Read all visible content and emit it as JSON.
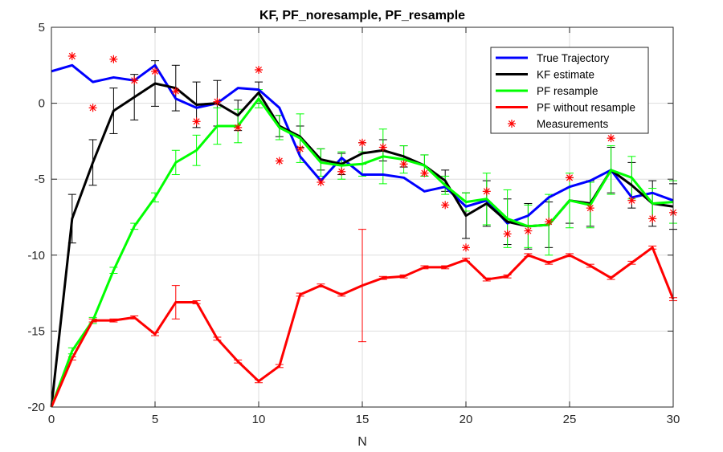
{
  "chart_data": {
    "type": "line",
    "title": "KF, PF_noresample, PF_resample",
    "xlabel": "N",
    "ylabel": "",
    "xlim": [
      0,
      30
    ],
    "ylim": [
      -20,
      5
    ],
    "xticks": [
      0,
      5,
      10,
      15,
      20,
      25,
      30
    ],
    "yticks": [
      -20,
      -15,
      -10,
      -5,
      0,
      5
    ],
    "grid": true,
    "legend_position": "top-right",
    "x": [
      0,
      1,
      2,
      3,
      4,
      5,
      6,
      7,
      8,
      9,
      10,
      11,
      12,
      13,
      14,
      15,
      16,
      17,
      18,
      19,
      20,
      21,
      22,
      23,
      24,
      25,
      26,
      27,
      28,
      29,
      30
    ],
    "series": [
      {
        "name": "True Trajectory",
        "style": "line",
        "color": "#0000ff",
        "values": [
          2.1,
          2.5,
          1.4,
          1.7,
          1.5,
          2.5,
          0.3,
          -0.3,
          0.0,
          1.0,
          0.9,
          -0.3,
          -3.5,
          -5.1,
          -3.6,
          -4.7,
          -4.7,
          -4.9,
          -5.8,
          -5.5,
          -6.8,
          -6.4,
          -7.9,
          -7.4,
          -6.2,
          -5.5,
          -5.1,
          -4.4,
          -6.2,
          -5.9,
          -6.4
        ]
      },
      {
        "name": "KF estimate",
        "style": "line",
        "color": "#000000",
        "values": [
          -20.0,
          -7.6,
          -3.9,
          -0.5,
          0.4,
          1.3,
          1.0,
          -0.1,
          0.0,
          -0.8,
          0.7,
          -1.5,
          -2.2,
          -3.7,
          -4.0,
          -3.3,
          -3.1,
          -3.5,
          -4.1,
          -5.1,
          -7.4,
          -6.6,
          -7.8,
          -8.1,
          -8.0,
          -6.4,
          -6.6,
          -4.4,
          -5.4,
          -6.6,
          -6.8
        ],
        "error": [
          0,
          1.6,
          1.5,
          1.5,
          1.5,
          1.5,
          1.5,
          1.5,
          1.5,
          1.0,
          0.7,
          0.7,
          0.7,
          0.7,
          0.7,
          0.7,
          0.7,
          0.7,
          0.7,
          0.7,
          1.5,
          1.5,
          1.5,
          1.5,
          1.5,
          1.5,
          1.5,
          1.5,
          1.5,
          1.5,
          1.5
        ]
      },
      {
        "name": "PF resample",
        "style": "line",
        "color": "#00ff00",
        "values": [
          -20.0,
          -16.3,
          -14.3,
          -11.0,
          -8.1,
          -6.2,
          -3.9,
          -3.1,
          -1.5,
          -1.5,
          0.3,
          -1.6,
          -2.3,
          -3.9,
          -4.1,
          -4.0,
          -3.5,
          -3.7,
          -4.1,
          -5.4,
          -6.5,
          -6.3,
          -7.6,
          -8.1,
          -8.0,
          -6.4,
          -6.7,
          -4.4,
          -4.9,
          -6.6,
          -6.5
        ],
        "error": [
          0,
          0.2,
          0.2,
          0.2,
          0.2,
          0.3,
          0.8,
          1.0,
          1.2,
          1.1,
          0.6,
          0.8,
          1.6,
          0.9,
          0.9,
          0.8,
          1.8,
          0.9,
          0.7,
          0.6,
          0.6,
          1.7,
          1.9,
          1.4,
          2.0,
          1.8,
          1.5,
          1.6,
          1.4,
          1.0,
          1.4
        ]
      },
      {
        "name": "PF without resample",
        "style": "line",
        "color": "#ff0000",
        "values": [
          -20.0,
          -16.8,
          -14.3,
          -14.3,
          -14.1,
          -15.2,
          -13.1,
          -13.1,
          -15.5,
          -17.0,
          -18.3,
          -17.3,
          -12.6,
          -12.0,
          -12.6,
          -12.0,
          -11.5,
          -11.4,
          -10.8,
          -10.8,
          -10.3,
          -11.6,
          -11.4,
          -10.0,
          -10.5,
          -10.0,
          -10.7,
          -11.5,
          -10.5,
          -9.5,
          -12.9
        ],
        "error": [
          0,
          0.1,
          0.1,
          0.1,
          0.1,
          0.1,
          1.1,
          0.1,
          0.1,
          0.1,
          0.1,
          0.1,
          0.1,
          0.1,
          0.1,
          3.7,
          0.1,
          0.1,
          0.1,
          0.1,
          0.1,
          0.1,
          0.1,
          0.1,
          0.1,
          0.1,
          0.1,
          0.1,
          0.1,
          0.1,
          0.1
        ]
      },
      {
        "name": "Measurements",
        "style": "marker",
        "color": "#ff0000",
        "values": [
          null,
          3.1,
          -0.3,
          2.9,
          1.5,
          2.1,
          0.8,
          -1.2,
          0.1,
          -1.6,
          2.2,
          -3.8,
          -3.0,
          -5.2,
          -4.5,
          -2.6,
          -2.9,
          -4.0,
          -4.6,
          -6.7,
          -9.5,
          -5.8,
          -8.6,
          -8.4,
          -7.8,
          -4.9,
          -6.9,
          -2.3,
          -6.4,
          -7.6,
          -7.2
        ]
      }
    ]
  }
}
